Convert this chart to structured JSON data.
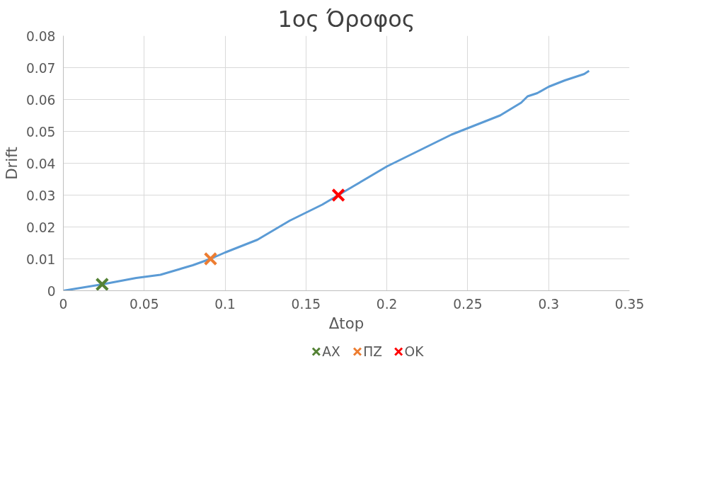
{
  "chart_data": {
    "type": "line",
    "title": "1ος Όροφος",
    "xlabel": "Δtop",
    "ylabel": "Drift",
    "xlim": [
      0,
      0.35
    ],
    "xticks": [
      0,
      0.05,
      0.1,
      0.15,
      0.2,
      0.25,
      0.3,
      0.35
    ],
    "ylim": [
      0,
      0.08
    ],
    "yticks": [
      0,
      0.01,
      0.02,
      0.03,
      0.04,
      0.05,
      0.06,
      0.07,
      0.08
    ],
    "grid": true,
    "legend": "bottom",
    "marker": "none",
    "series": [
      {
        "color": "#5b9bd5",
        "x": [
          0,
          0.024,
          0.045,
          0.06,
          0.08,
          0.091,
          0.1,
          0.12,
          0.14,
          0.16,
          0.17,
          0.18,
          0.2,
          0.22,
          0.24,
          0.25,
          0.27,
          0.283,
          0.287,
          0.293,
          0.3,
          0.31,
          0.322,
          0.325
        ],
        "values": [
          0,
          0.002,
          0.004,
          0.005,
          0.008,
          0.01,
          0.012,
          0.016,
          0.022,
          0.027,
          0.03,
          0.033,
          0.039,
          0.044,
          0.049,
          0.051,
          0.055,
          0.059,
          0.061,
          0.062,
          0.064,
          0.066,
          0.068,
          0.069
        ]
      },
      {
        "type": "scatter",
        "name": "ΑΧ",
        "color": "#548235",
        "marker": "cross",
        "x": [
          0.024
        ],
        "values": [
          0.002
        ]
      },
      {
        "type": "scatter",
        "name": "ΠΖ",
        "color": "#ed7d31",
        "marker": "cross",
        "x": [
          0.091
        ],
        "values": [
          0.01
        ]
      },
      {
        "type": "scatter",
        "name": "ΟΚ",
        "color": "#ff0000",
        "marker": "cross",
        "x": [
          0.17
        ],
        "values": [
          0.03
        ]
      }
    ]
  }
}
